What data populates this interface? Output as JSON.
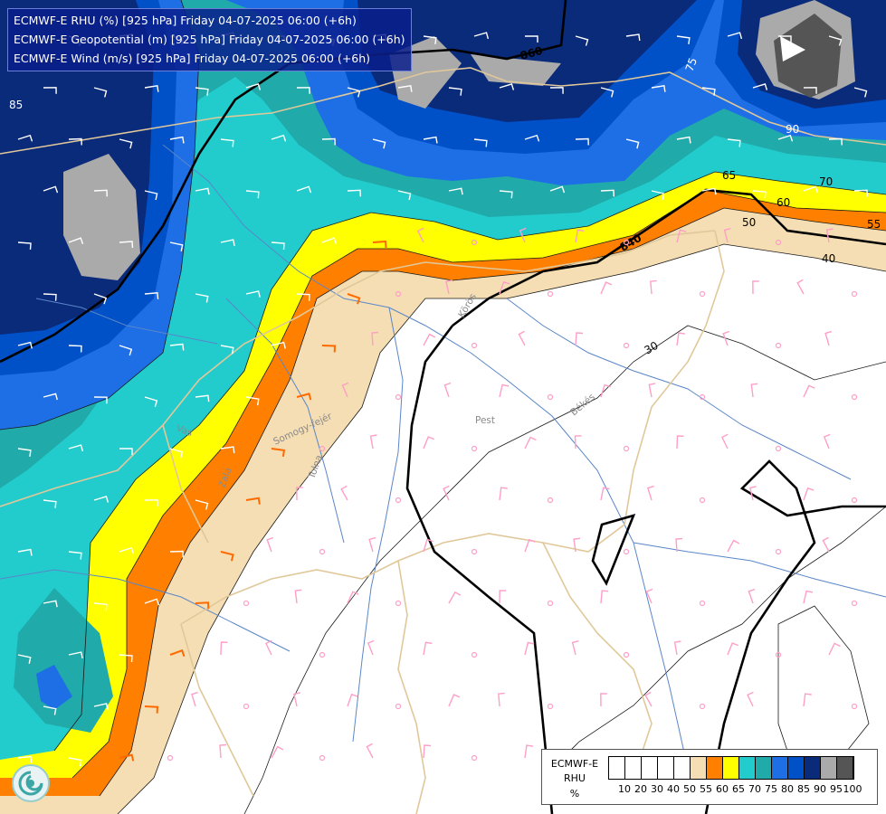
{
  "titles": {
    "line1": "ECMWF-E RHU (%) [925 hPa] Friday 04-07-2025 06:00 (+6h)",
    "line2": "ECMWF-E Geopotential (m) [925 hPa] Friday 04-07-2025 06:00 (+6h)",
    "line3": "ECMWF-E Wind (m/s) [925 hPa] Friday 04-07-2025 06:00 (+6h)"
  },
  "legend": {
    "title1": "ECMWF-E",
    "title2": "RHU",
    "unit": "%",
    "ticks": [
      "10",
      "20",
      "30",
      "40",
      "50",
      "55",
      "60",
      "65",
      "70",
      "75",
      "80",
      "85",
      "90",
      "95",
      "100"
    ],
    "colors": [
      "#ffffff",
      "#ffffff",
      "#ffffff",
      "#ffffff",
      "#ffffff",
      "#f5deb3",
      "#ff8000",
      "#ffff00",
      "#22cccc",
      "#20aaaa",
      "#1e6fe6",
      "#0050c8",
      "#0a2a7a",
      "#aaaaaa",
      "#555555"
    ]
  },
  "contour_labels": {
    "geo860": "860",
    "geo840": "840",
    "rh85": "85",
    "rh75": "75",
    "rh90": "90",
    "rh70": "70",
    "rh65": "65",
    "rh60": "60",
    "rh55": "55",
    "rh50": "50",
    "rh40": "40",
    "rh30": "30"
  },
  "places": {
    "korös": "Körös",
    "pest": "Pest",
    "bekes": "Békés",
    "vas": "Vas",
    "somogy": "Somogy-fejér",
    "zala": "Zala",
    "tolna": "Tolna"
  },
  "colors": {
    "rh40": "#ffffff",
    "rh55": "#f5deb3",
    "rh60": "#ff8000",
    "rh65": "#ffff00",
    "rh70": "#22cccc",
    "rh75": "#20aaaa",
    "rh80": "#1e6fe6",
    "rh85": "#0050c8",
    "rh90": "#0a2a7a",
    "rh95": "#aaaaaa",
    "rh100": "#555555",
    "border": "#e0c89a",
    "river": "#5a86c8",
    "wind_dry": "#ff9ec7",
    "wind_mid": "#ff6a00",
    "wind_wet": "#ff6a00",
    "wind_white": "#ffffff"
  }
}
